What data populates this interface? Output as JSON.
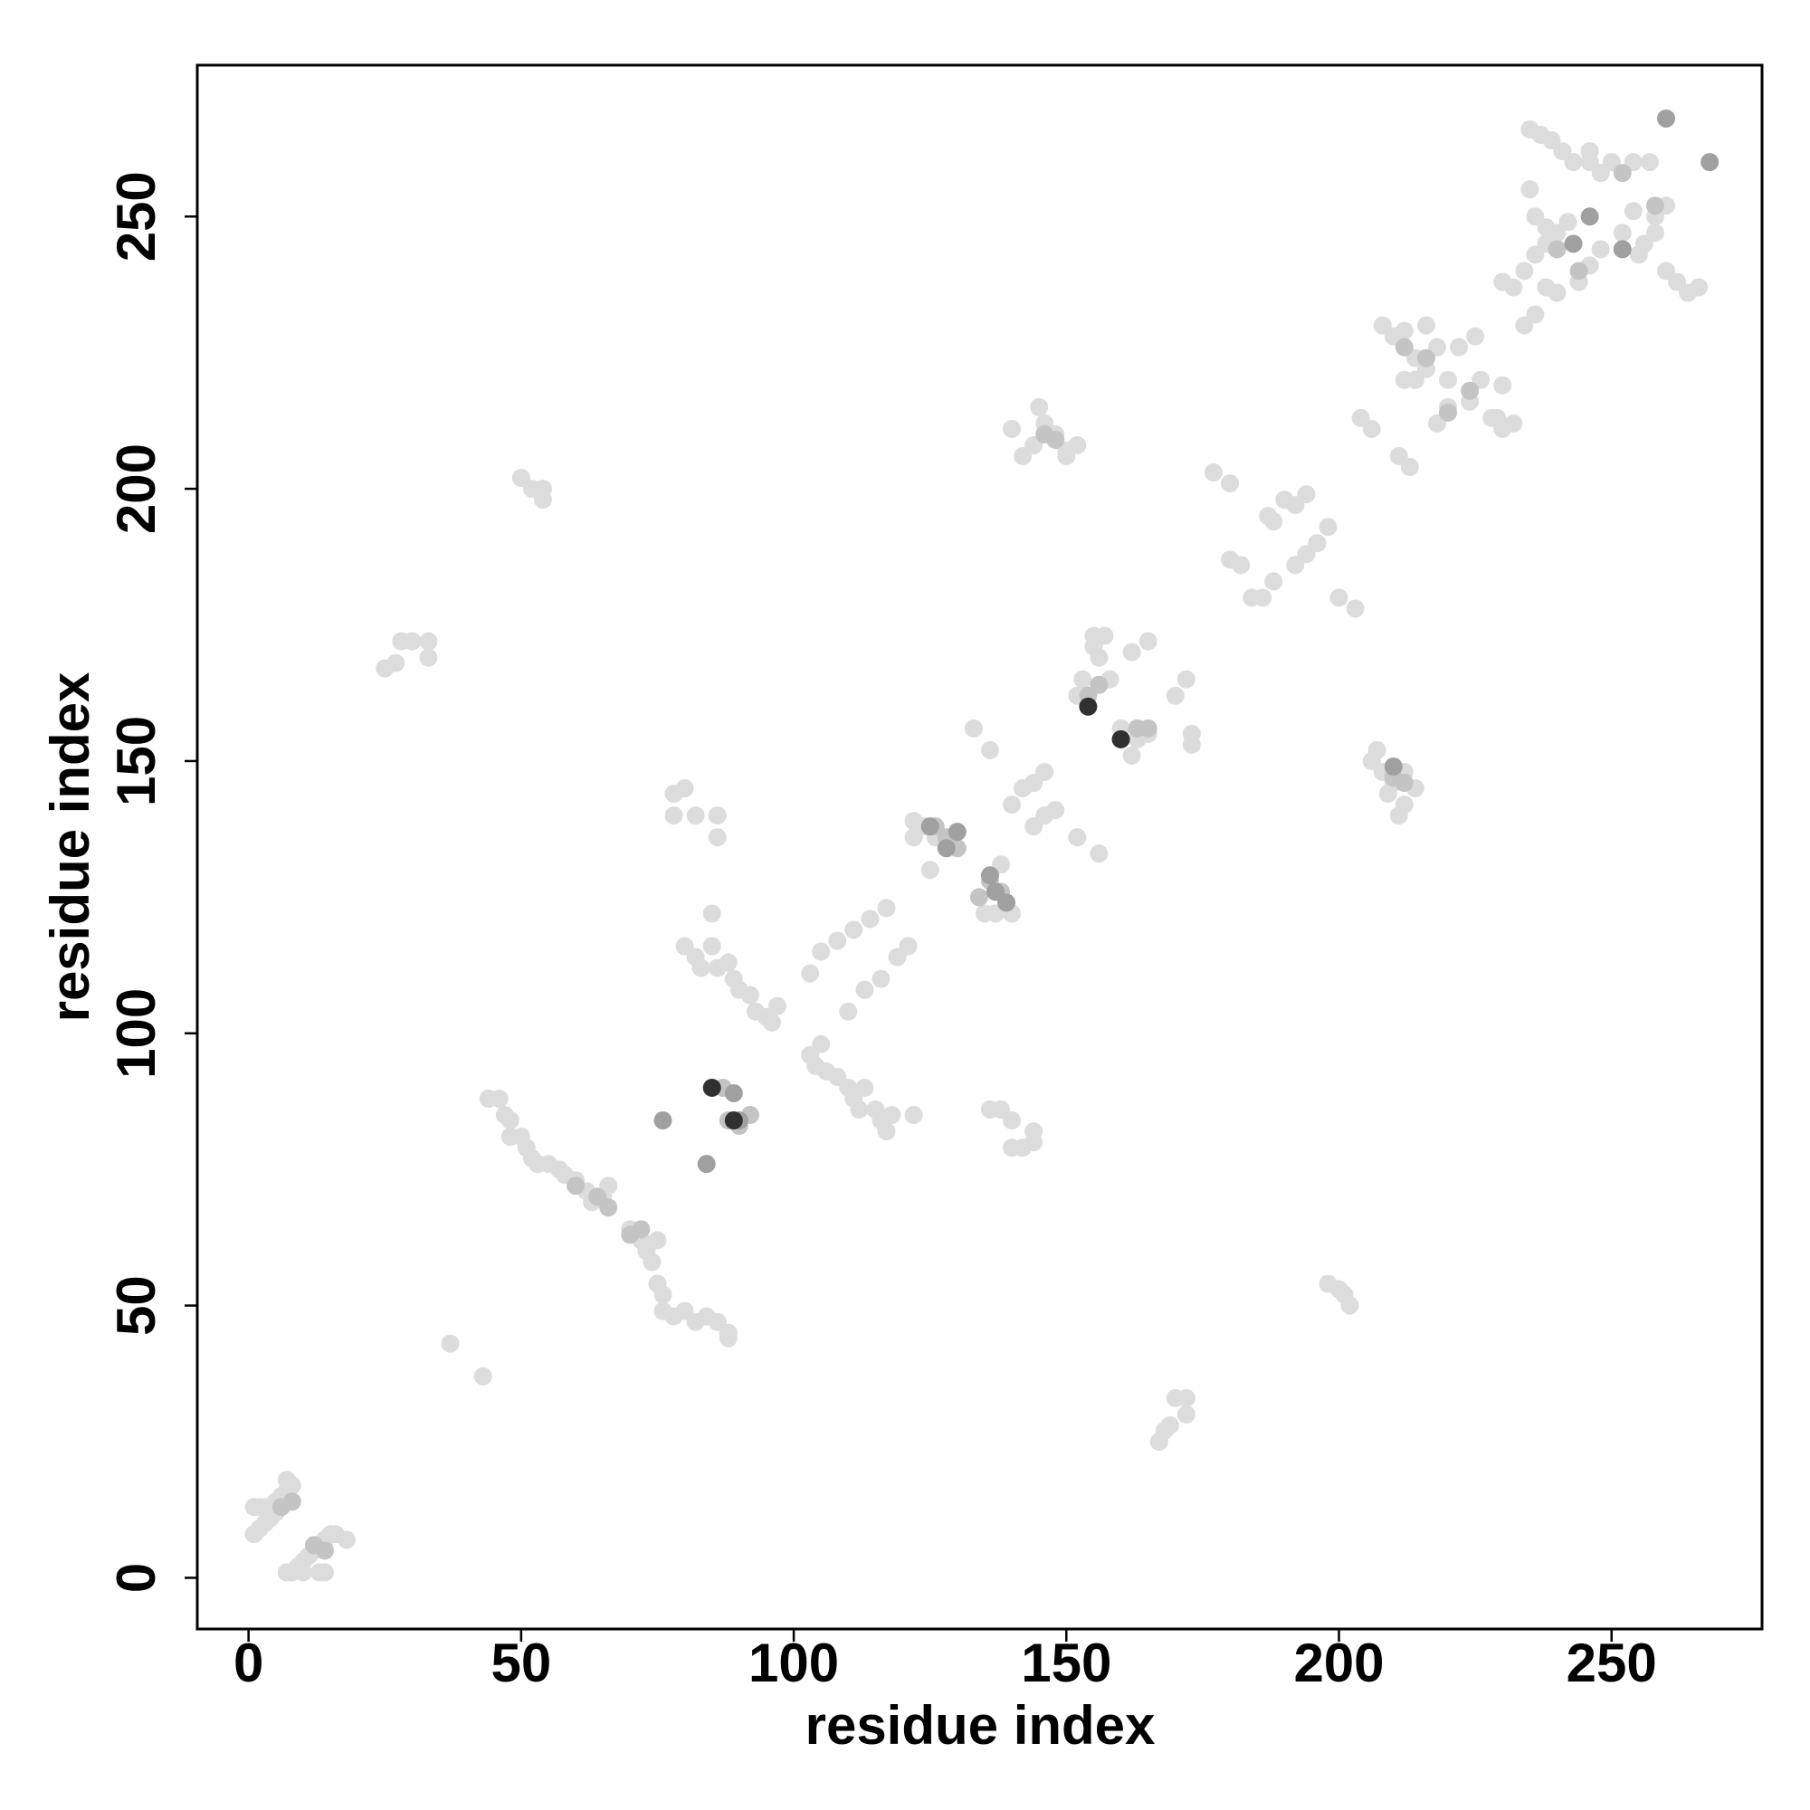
{
  "chart_data": {
    "type": "scatter",
    "xlabel": "residue index",
    "ylabel": "residue index",
    "xlim": [
      -9.4,
      277.6
    ],
    "ylim": [
      -9.4,
      277.8
    ],
    "xticks": [
      0,
      50,
      100,
      150,
      200,
      250
    ],
    "yticks": [
      0,
      50,
      100,
      150,
      200,
      250
    ],
    "grid": false,
    "series": [
      {
        "color": "#dcdcdc",
        "x": [
          1,
          2,
          3,
          4,
          5,
          6,
          7,
          8,
          7,
          1,
          2,
          3,
          4,
          5,
          7,
          8,
          9,
          10,
          11,
          12,
          13,
          14,
          15,
          16,
          18,
          13,
          14,
          10,
          44,
          46,
          47,
          48,
          48,
          50,
          51,
          52,
          53,
          55,
          57,
          58,
          60,
          62,
          63,
          65,
          66,
          70,
          72,
          73,
          74,
          75,
          75,
          76,
          76,
          78,
          80,
          82,
          84,
          86,
          88,
          88,
          37,
          43,
          80,
          82,
          83,
          85,
          86,
          88,
          89,
          90,
          92,
          93,
          95,
          96,
          97,
          103,
          104,
          105,
          106,
          108,
          110,
          111,
          112,
          113,
          115,
          116,
          117,
          118,
          85,
          122,
          103,
          105,
          108,
          111,
          114,
          117,
          110,
          113,
          116,
          119,
          121,
          122,
          124,
          126,
          133,
          156,
          136,
          152,
          135,
          137,
          140,
          138,
          122,
          125,
          140,
          142,
          144,
          146,
          146,
          148,
          144,
          152,
          153,
          155,
          157,
          158,
          162,
          165,
          170,
          172,
          173,
          173,
          155,
          160,
          162,
          163,
          165,
          156,
          142,
          144,
          146,
          148,
          150,
          152,
          140,
          145,
          150,
          206,
          208,
          210,
          212,
          214,
          212,
          211,
          207,
          209,
          25,
          27,
          28,
          30,
          33,
          33,
          167,
          168,
          170,
          172,
          172,
          169,
          50,
          52,
          54,
          54,
          198,
          200,
          201,
          202,
          78,
          80,
          78,
          82,
          86,
          86,
          136,
          138,
          140,
          140,
          142,
          144,
          144,
          177,
          180,
          180,
          182,
          186,
          188,
          190,
          192,
          194,
          196,
          198,
          192,
          188,
          200,
          203,
          204,
          206,
          213,
          211,
          187,
          194,
          184,
          208,
          210,
          212,
          214,
          216,
          218,
          220,
          216,
          212,
          222,
          225,
          218,
          220,
          224,
          226,
          228,
          230,
          232,
          214,
          229,
          230,
          230,
          232,
          234,
          236,
          238,
          240,
          242,
          235,
          236,
          238,
          234,
          236,
          238,
          240,
          244,
          246,
          248,
          252,
          254,
          255,
          256,
          258,
          260,
          262,
          264,
          266,
          258,
          260,
          235,
          237,
          239,
          241,
          243,
          246,
          250,
          254,
          257,
          246,
          248
        ],
        "y": [
          13,
          13,
          13,
          13,
          14,
          15,
          16,
          17,
          18,
          8,
          9,
          10,
          11,
          12,
          1,
          1,
          2,
          3,
          4,
          5,
          6,
          7,
          8,
          8,
          7,
          1,
          1,
          1,
          88,
          88,
          85,
          84,
          81,
          81,
          79,
          77,
          76,
          76,
          75,
          74,
          73,
          71,
          69,
          70,
          72,
          64,
          62,
          60,
          58,
          62,
          54,
          52,
          49,
          48,
          49,
          47,
          48,
          47,
          45,
          44,
          43,
          37,
          116,
          114,
          112,
          116,
          112,
          113,
          110,
          108,
          107,
          104,
          103,
          102,
          105,
          96,
          94,
          98,
          93,
          92,
          90,
          88,
          86,
          90,
          86,
          84,
          82,
          85,
          122,
          85,
          111,
          115,
          117,
          119,
          121,
          123,
          104,
          108,
          110,
          114,
          116,
          139,
          138,
          136,
          156,
          133,
          152,
          136,
          122,
          122,
          122,
          131,
          136,
          130,
          142,
          145,
          146,
          148,
          140,
          141,
          138,
          162,
          165,
          173,
          173,
          165,
          170,
          172,
          162,
          165,
          155,
          153,
          171,
          156,
          151,
          154,
          155,
          169,
          206,
          208,
          212,
          210,
          207,
          208,
          211,
          215,
          206,
          150,
          148,
          146,
          142,
          145,
          148,
          140,
          152,
          144,
          167,
          168,
          172,
          172,
          172,
          169,
          25,
          27,
          33,
          33,
          30,
          28,
          202,
          200,
          198,
          200,
          54,
          53,
          52,
          50,
          144,
          145,
          140,
          140,
          140,
          136,
          86,
          86,
          84,
          79,
          79,
          82,
          80,
          203,
          201,
          187,
          186,
          180,
          194,
          198,
          197,
          188,
          190,
          193,
          186,
          183,
          180,
          178,
          213,
          211,
          204,
          206,
          195,
          199,
          180,
          230,
          228,
          229,
          224,
          222,
          226,
          220,
          230,
          220,
          226,
          228,
          212,
          215,
          216,
          220,
          213,
          211,
          212,
          220,
          213,
          219,
          238,
          237,
          240,
          243,
          245,
          247,
          249,
          255,
          250,
          248,
          230,
          232,
          237,
          236,
          238,
          241,
          244,
          247,
          251,
          243,
          245,
          247,
          240,
          238,
          236,
          237,
          250,
          252,
          266,
          265,
          264,
          262,
          260,
          260,
          260,
          260,
          260,
          262,
          258
        ]
      },
      {
        "color": "#c4c4c4",
        "x": [
          6,
          8,
          12,
          14,
          60,
          64,
          66,
          70,
          72,
          87,
          88,
          90,
          92,
          128,
          126,
          130,
          136,
          138,
          134,
          146,
          148,
          210,
          212,
          154,
          156,
          163,
          165,
          212,
          216,
          220,
          224,
          240,
          244,
          252,
          258
        ],
        "y": [
          13,
          14,
          6,
          5,
          72,
          70,
          68,
          63,
          64,
          90,
          84,
          83,
          85,
          136,
          138,
          134,
          128,
          126,
          125,
          210,
          209,
          147,
          146,
          162,
          164,
          156,
          156,
          226,
          224,
          214,
          218,
          244,
          240,
          258,
          252
        ]
      },
      {
        "color": "#a0a0a0",
        "x": [
          76,
          84,
          89,
          90,
          125,
          128,
          130,
          136,
          137,
          139,
          246,
          252,
          260,
          268,
          243,
          210
        ],
        "y": [
          84,
          76,
          89,
          84,
          138,
          134,
          137,
          129,
          126,
          124,
          250,
          244,
          268,
          260,
          245,
          149
        ]
      },
      {
        "color": "#303030",
        "x": [
          154,
          160,
          89,
          85
        ],
        "y": [
          160,
          154,
          84,
          90
        ]
      }
    ]
  }
}
